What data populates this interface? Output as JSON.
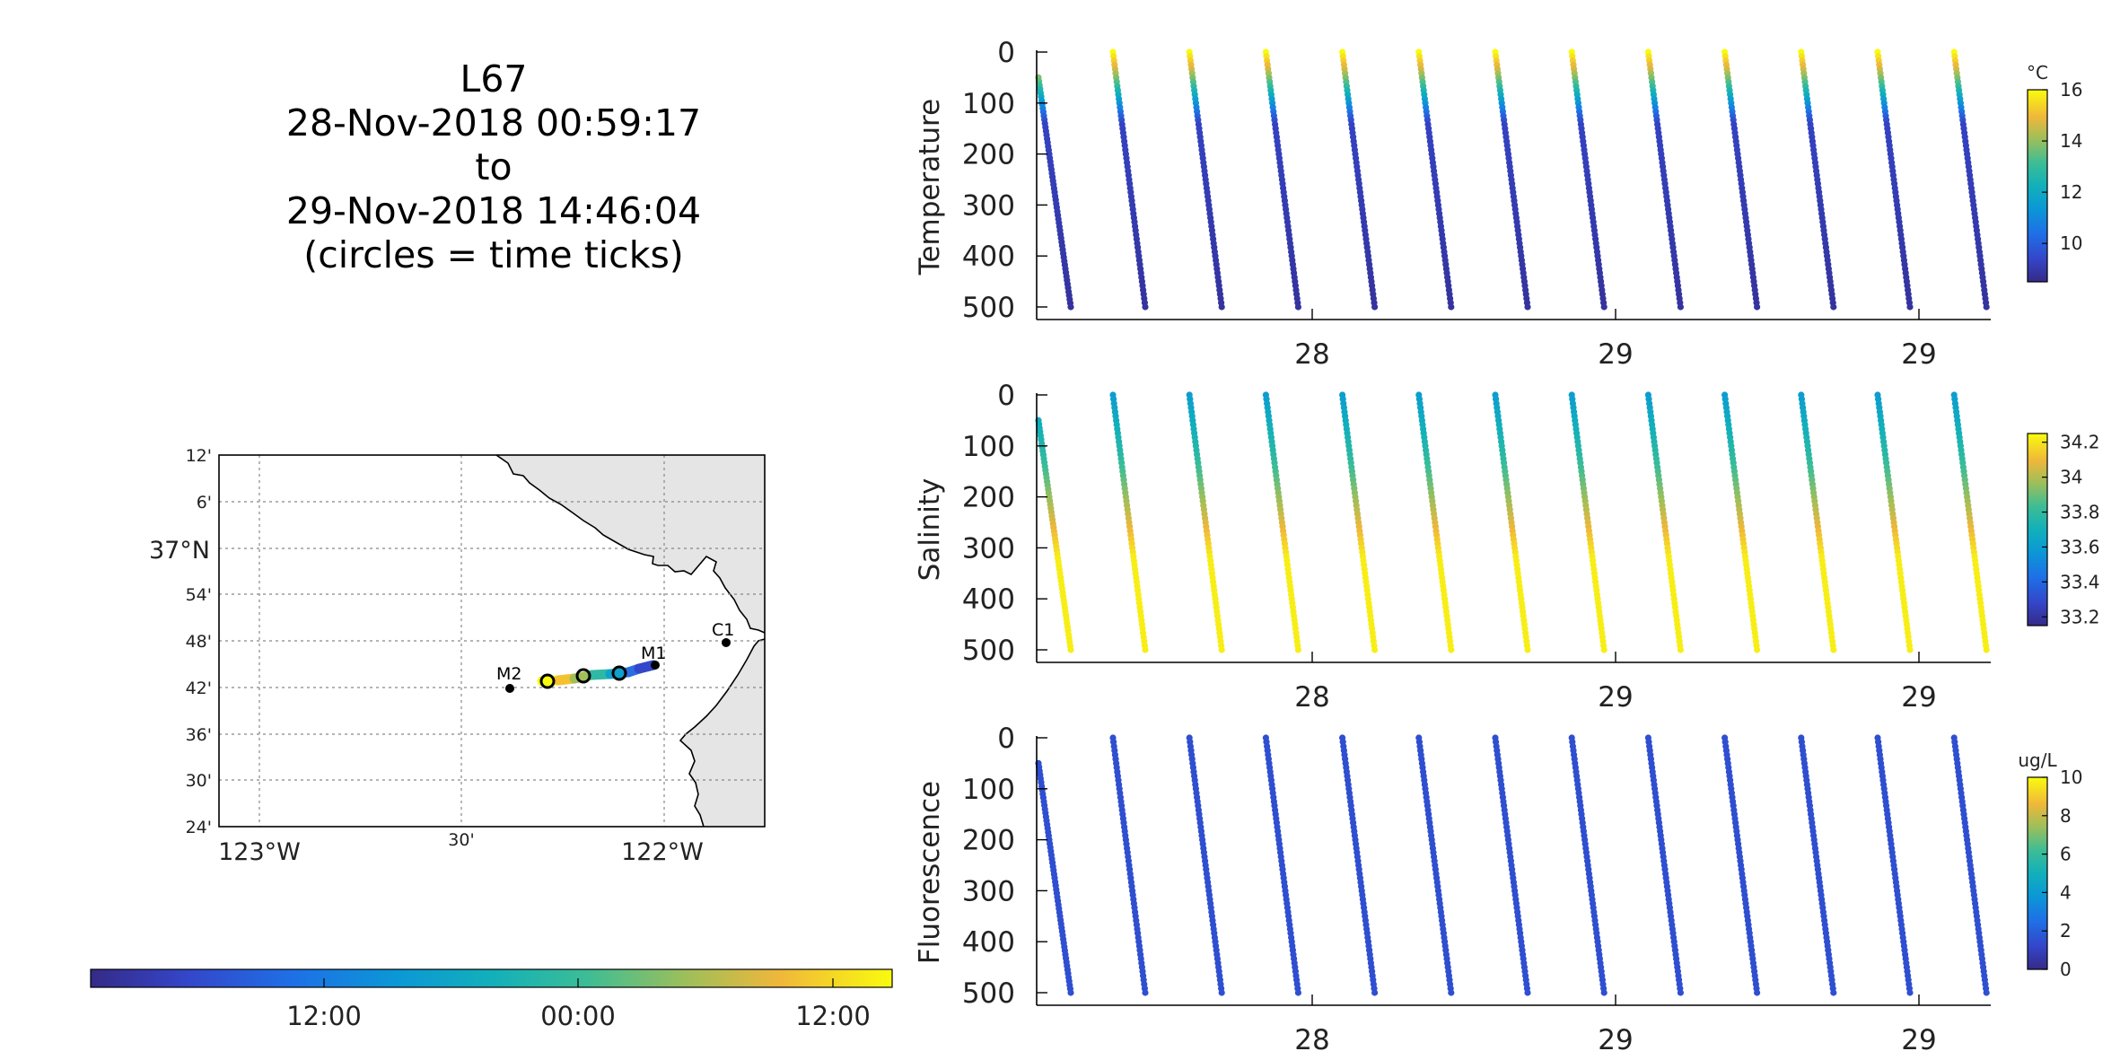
{
  "title": {
    "lines": [
      "L67",
      "28-Nov-2018 00:59:17",
      "to",
      "29-Nov-2018 14:46:04",
      "(circles = time ticks)"
    ]
  },
  "map": {
    "lat_labels": [
      "12'",
      "6'",
      "37°N",
      "54'",
      "48'",
      "42'",
      "36'",
      "30'",
      "24'"
    ],
    "lon_labels": [
      "123°W",
      "30'",
      "122°W"
    ],
    "stations": [
      {
        "name": "M2",
        "lon": -122.39,
        "lat": 36.7
      },
      {
        "name": "M1",
        "lon": -122.03,
        "lat": 36.75
      },
      {
        "name": "C1",
        "lon": -121.9,
        "lat": 36.8
      }
    ],
    "land_color": "#e5e5e5"
  },
  "time_colorbar": {
    "tick_labels": [
      "12:00",
      "00:00",
      "12:00"
    ],
    "colormap": "parula"
  },
  "chart_data": [
    {
      "type": "scatter",
      "ylabel": "Temperature",
      "y_reversed": true,
      "ylim": [
        0,
        500
      ],
      "y_ticks": [
        0,
        100,
        200,
        300,
        400,
        500
      ],
      "x_tick_labels": [
        "28",
        "29",
        "29"
      ],
      "colorbar": {
        "unit": "°C",
        "ticks": [
          10,
          12,
          14,
          16
        ],
        "range": [
          8.5,
          16
        ]
      },
      "profile_profile": {
        "surface_value": 16,
        "thermocline_depth": 80,
        "deep_value": 8.8
      },
      "yos": 13
    },
    {
      "type": "scatter",
      "ylabel": "Salinity",
      "y_reversed": true,
      "ylim": [
        0,
        500
      ],
      "y_ticks": [
        0,
        100,
        200,
        300,
        400,
        500
      ],
      "x_tick_labels": [
        "28",
        "29",
        "29"
      ],
      "colorbar": {
        "unit": "",
        "ticks": [
          33.2,
          33.4,
          33.6,
          33.8,
          34,
          34.2
        ],
        "range": [
          33.15,
          34.25
        ]
      },
      "profile_profile": {
        "surface_value": 33.6,
        "deep_value": 34.25
      },
      "yos": 13
    },
    {
      "type": "scatter",
      "ylabel": "Fluorescence",
      "y_reversed": true,
      "ylim": [
        0,
        500
      ],
      "y_ticks": [
        0,
        100,
        200,
        300,
        400,
        500
      ],
      "x_tick_labels": [
        "28",
        "29",
        "29"
      ],
      "colorbar": {
        "unit": "ug/L",
        "ticks": [
          0,
          2,
          4,
          6,
          8,
          10
        ],
        "range": [
          0,
          10
        ]
      },
      "profile_profile": {
        "surface_value": 1.5,
        "deep_value": 1.5
      },
      "yos": 13
    }
  ]
}
